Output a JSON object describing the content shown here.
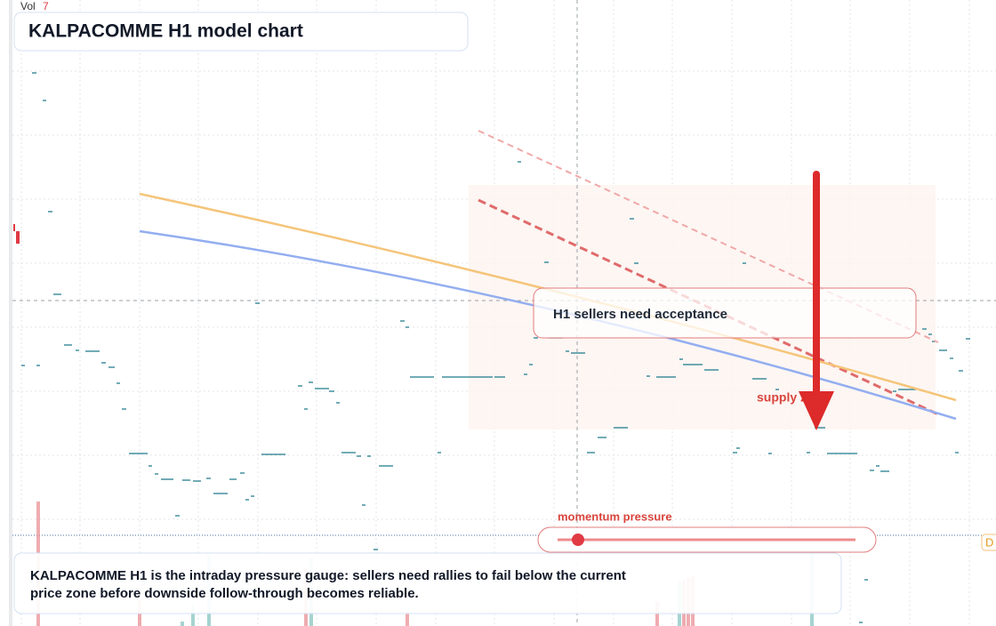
{
  "header": {
    "volume_label": "Vol",
    "volume_value": "7",
    "title": "KALPACOMME H1 model chart"
  },
  "annotations": {
    "callout": "H1 sellers need acceptance",
    "zone_label": "supply zone",
    "gauge_label": "momentum pressure",
    "edge_tag": "D"
  },
  "caption": {
    "lines": [
      "KALPACOMME H1 is the intraday pressure gauge: sellers need rallies to fail below the current",
      "price zone before downside follow-through becomes reliable."
    ]
  }
}
